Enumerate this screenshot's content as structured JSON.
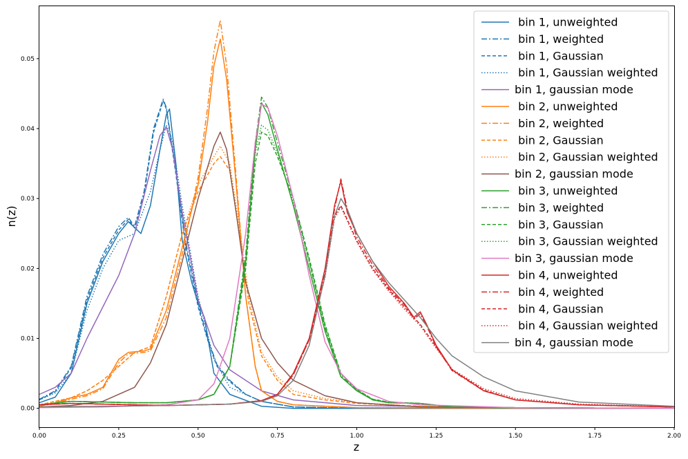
{
  "chart_data": {
    "type": "line",
    "title": "",
    "xlabel": "z",
    "ylabel": "n(z)",
    "xlim": [
      0.0,
      2.0
    ],
    "ylim": [
      -0.0027,
      0.0575
    ],
    "xticks": [
      "0.00",
      "0.25",
      "0.50",
      "0.75",
      "1.00",
      "1.25",
      "1.50",
      "1.75",
      "2.00"
    ],
    "xtick_values": [
      0.0,
      0.25,
      0.5,
      0.75,
      1.0,
      1.25,
      1.5,
      1.75,
      2.0
    ],
    "yticks": [
      "0.00",
      "0.01",
      "0.02",
      "0.03",
      "0.04",
      "0.05"
    ],
    "ytick_values": [
      0.0,
      0.01,
      0.02,
      0.03,
      0.04,
      0.05
    ],
    "grid": false,
    "legend_position": "top-right",
    "colors": {
      "bin1": "#1f77b4",
      "bin2": "#ff7f0e",
      "bin3": "#2ca02c",
      "bin4": "#d62728",
      "mode1": "#9467bd",
      "mode2": "#8c564b",
      "mode3": "#e377c2",
      "mode4": "#7f7f7f"
    },
    "series": [
      {
        "name": " bin 1, unweighted",
        "color": "#1f77b4",
        "dash": "solid",
        "x": [
          0.0,
          0.05,
          0.1,
          0.15,
          0.2,
          0.25,
          0.28,
          0.32,
          0.35,
          0.38,
          0.4,
          0.41,
          0.43,
          0.45,
          0.48,
          0.5,
          0.52,
          0.55,
          0.6,
          0.7,
          0.8,
          1.0,
          2.0
        ],
        "y": [
          0.0008,
          0.0016,
          0.005,
          0.015,
          0.021,
          0.025,
          0.0267,
          0.025,
          0.029,
          0.037,
          0.042,
          0.0428,
          0.035,
          0.024,
          0.018,
          0.015,
          0.013,
          0.005,
          0.002,
          0.0003,
          0.0,
          0.0,
          0.0
        ]
      },
      {
        "name": " bin 1, weighted",
        "color": "#1f77b4",
        "dash": "dashdot",
        "x": [
          0.0,
          0.05,
          0.1,
          0.15,
          0.2,
          0.25,
          0.28,
          0.3,
          0.33,
          0.36,
          0.39,
          0.4,
          0.43,
          0.46,
          0.5,
          0.53,
          0.56,
          0.6,
          0.65,
          0.7,
          0.8,
          1.0,
          2.0
        ],
        "y": [
          0.0013,
          0.0025,
          0.006,
          0.016,
          0.022,
          0.026,
          0.0273,
          0.026,
          0.031,
          0.04,
          0.0442,
          0.043,
          0.034,
          0.024,
          0.015,
          0.01,
          0.0062,
          0.004,
          0.002,
          0.001,
          0.0002,
          0.0,
          0.0
        ]
      },
      {
        "name": " bin 1, Gaussian",
        "color": "#1f77b4",
        "dash": "dashed",
        "x": [
          0.0,
          0.05,
          0.1,
          0.15,
          0.2,
          0.25,
          0.28,
          0.3,
          0.33,
          0.36,
          0.39,
          0.4,
          0.43,
          0.46,
          0.5,
          0.53,
          0.56,
          0.6,
          0.65,
          0.7,
          0.8,
          1.0,
          2.0
        ],
        "y": [
          0.0012,
          0.0024,
          0.0058,
          0.0155,
          0.0215,
          0.0255,
          0.027,
          0.0258,
          0.0305,
          0.0395,
          0.044,
          0.0428,
          0.0335,
          0.0235,
          0.0145,
          0.0098,
          0.006,
          0.0038,
          0.002,
          0.001,
          0.0002,
          0.0,
          0.0
        ]
      },
      {
        "name": " bin 1, Gaussian weighted",
        "color": "#1f77b4",
        "dash": "dotted",
        "x": [
          0.0,
          0.05,
          0.1,
          0.15,
          0.2,
          0.25,
          0.3,
          0.35,
          0.38,
          0.4,
          0.42,
          0.45,
          0.5,
          0.55,
          0.6,
          0.7,
          0.8,
          1.0,
          2.0
        ],
        "y": [
          0.0012,
          0.0022,
          0.005,
          0.014,
          0.02,
          0.024,
          0.025,
          0.031,
          0.037,
          0.0405,
          0.038,
          0.029,
          0.016,
          0.007,
          0.003,
          0.001,
          0.0002,
          0.0,
          0.0
        ]
      },
      {
        "name": "bin 1, gaussian mode",
        "color": "#9467bd",
        "dash": "solid",
        "x": [
          0.0,
          0.05,
          0.1,
          0.15,
          0.2,
          0.25,
          0.3,
          0.35,
          0.38,
          0.4,
          0.42,
          0.45,
          0.5,
          0.55,
          0.6,
          0.7,
          0.8,
          1.0,
          1.5,
          2.0
        ],
        "y": [
          0.002,
          0.003,
          0.005,
          0.01,
          0.0145,
          0.019,
          0.025,
          0.034,
          0.039,
          0.0402,
          0.037,
          0.028,
          0.0155,
          0.009,
          0.0055,
          0.0025,
          0.0012,
          0.0004,
          0.0001,
          0.0
        ]
      },
      {
        "name": " bin 2, unweighted",
        "color": "#ff7f0e",
        "dash": "solid",
        "x": [
          0.0,
          0.05,
          0.1,
          0.15,
          0.2,
          0.25,
          0.28,
          0.33,
          0.35,
          0.4,
          0.45,
          0.5,
          0.53,
          0.55,
          0.57,
          0.59,
          0.62,
          0.65,
          0.68,
          0.7,
          0.75,
          0.8,
          1.0,
          2.0
        ],
        "y": [
          0.0003,
          0.0008,
          0.0015,
          0.002,
          0.003,
          0.007,
          0.008,
          0.0082,
          0.0085,
          0.014,
          0.023,
          0.032,
          0.041,
          0.049,
          0.0528,
          0.047,
          0.032,
          0.016,
          0.006,
          0.0025,
          0.001,
          0.0005,
          0.0001,
          0.0
        ]
      },
      {
        "name": " bin 2, weighted",
        "color": "#ff7f0e",
        "dash": "dashdot",
        "x": [
          0.0,
          0.05,
          0.1,
          0.15,
          0.2,
          0.25,
          0.28,
          0.33,
          0.35,
          0.4,
          0.45,
          0.5,
          0.53,
          0.55,
          0.57,
          0.59,
          0.62,
          0.65,
          0.68,
          0.7,
          0.75,
          0.8,
          1.0,
          2.0
        ],
        "y": [
          0.0003,
          0.0007,
          0.0013,
          0.0018,
          0.0028,
          0.0065,
          0.0078,
          0.008,
          0.0082,
          0.013,
          0.022,
          0.033,
          0.043,
          0.051,
          0.0555,
          0.049,
          0.033,
          0.016,
          0.006,
          0.0025,
          0.001,
          0.0005,
          0.0001,
          0.0
        ]
      },
      {
        "name": " bin 2, Gaussian",
        "color": "#ff7f0e",
        "dash": "dashed",
        "x": [
          0.0,
          0.05,
          0.1,
          0.15,
          0.2,
          0.25,
          0.3,
          0.35,
          0.4,
          0.45,
          0.5,
          0.55,
          0.57,
          0.6,
          0.63,
          0.66,
          0.7,
          0.75,
          0.8,
          0.9,
          1.0,
          1.2,
          1.5,
          2.0
        ],
        "y": [
          0.0005,
          0.001,
          0.0015,
          0.0025,
          0.004,
          0.006,
          0.008,
          0.0088,
          0.016,
          0.025,
          0.031,
          0.035,
          0.036,
          0.034,
          0.025,
          0.015,
          0.0075,
          0.004,
          0.002,
          0.0012,
          0.0007,
          0.0003,
          0.0001,
          0.0
        ]
      },
      {
        "name": " bin 2, Gaussian weighted",
        "color": "#ff7f0e",
        "dash": "dotted",
        "x": [
          0.0,
          0.05,
          0.1,
          0.15,
          0.2,
          0.25,
          0.3,
          0.35,
          0.4,
          0.45,
          0.5,
          0.55,
          0.57,
          0.6,
          0.63,
          0.66,
          0.7,
          0.75,
          0.8,
          0.9,
          1.0,
          1.2,
          1.5,
          2.0
        ],
        "y": [
          0.0005,
          0.001,
          0.0015,
          0.0025,
          0.004,
          0.006,
          0.008,
          0.0088,
          0.016,
          0.025,
          0.032,
          0.036,
          0.0375,
          0.035,
          0.026,
          0.016,
          0.008,
          0.0045,
          0.0025,
          0.0014,
          0.0008,
          0.0003,
          0.0001,
          0.0
        ]
      },
      {
        "name": "bin 2, gaussian mode",
        "color": "#8c564b",
        "dash": "solid",
        "x": [
          0.0,
          0.1,
          0.2,
          0.3,
          0.35,
          0.4,
          0.45,
          0.5,
          0.55,
          0.57,
          0.59,
          0.62,
          0.65,
          0.7,
          0.75,
          0.8,
          0.9,
          1.0,
          1.2,
          1.5,
          2.0
        ],
        "y": [
          0.0002,
          0.0004,
          0.001,
          0.003,
          0.0065,
          0.012,
          0.021,
          0.03,
          0.0375,
          0.0395,
          0.037,
          0.028,
          0.018,
          0.01,
          0.0065,
          0.004,
          0.0018,
          0.0008,
          0.0002,
          0.0001,
          0.0
        ]
      },
      {
        "name": " bin 3, unweighted",
        "color": "#2ca02c",
        "dash": "solid",
        "x": [
          0.0,
          0.1,
          0.2,
          0.3,
          0.4,
          0.5,
          0.55,
          0.6,
          0.65,
          0.68,
          0.7,
          0.72,
          0.75,
          0.8,
          0.85,
          0.9,
          0.95,
          1.0,
          1.05,
          1.1,
          1.2,
          1.3,
          1.5,
          2.0
        ],
        "y": [
          0.0005,
          0.001,
          0.0009,
          0.0008,
          0.0008,
          0.0012,
          0.002,
          0.006,
          0.021,
          0.037,
          0.0437,
          0.042,
          0.037,
          0.029,
          0.02,
          0.011,
          0.0045,
          0.0025,
          0.0012,
          0.0008,
          0.0007,
          0.0002,
          0.0001,
          0.0
        ]
      },
      {
        "name": " bin 3, weighted",
        "color": "#2ca02c",
        "dash": "dashdot",
        "x": [
          0.0,
          0.1,
          0.2,
          0.3,
          0.4,
          0.5,
          0.55,
          0.6,
          0.65,
          0.68,
          0.7,
          0.72,
          0.75,
          0.8,
          0.85,
          0.9,
          0.95,
          1.0,
          1.05,
          1.1,
          1.2,
          1.3,
          1.5,
          2.0
        ],
        "y": [
          0.0005,
          0.001,
          0.0009,
          0.0008,
          0.0008,
          0.0012,
          0.002,
          0.006,
          0.022,
          0.038,
          0.0445,
          0.043,
          0.038,
          0.03,
          0.021,
          0.0115,
          0.0047,
          0.0026,
          0.0012,
          0.0008,
          0.0007,
          0.0002,
          0.0001,
          0.0
        ]
      },
      {
        "name": " bin 3, Gaussian",
        "color": "#2ca02c",
        "dash": "dashed",
        "x": [
          0.0,
          0.1,
          0.2,
          0.3,
          0.4,
          0.5,
          0.55,
          0.6,
          0.65,
          0.68,
          0.7,
          0.72,
          0.75,
          0.8,
          0.85,
          0.9,
          0.95,
          1.0,
          1.05,
          1.1,
          1.2,
          1.3,
          1.5,
          2.0
        ],
        "y": [
          0.0005,
          0.001,
          0.0009,
          0.0008,
          0.0008,
          0.0012,
          0.002,
          0.006,
          0.02,
          0.035,
          0.0395,
          0.039,
          0.036,
          0.03,
          0.0215,
          0.012,
          0.005,
          0.0027,
          0.0013,
          0.0009,
          0.0007,
          0.0002,
          0.0001,
          0.0
        ]
      },
      {
        "name": " bin 3, Gaussian weighted",
        "color": "#2ca02c",
        "dash": "dotted",
        "x": [
          0.0,
          0.1,
          0.2,
          0.3,
          0.4,
          0.5,
          0.55,
          0.6,
          0.65,
          0.68,
          0.7,
          0.72,
          0.75,
          0.8,
          0.85,
          0.9,
          0.95,
          1.0,
          1.05,
          1.1,
          1.2,
          1.3,
          1.5,
          2.0
        ],
        "y": [
          0.0005,
          0.001,
          0.0009,
          0.0008,
          0.0008,
          0.0012,
          0.002,
          0.006,
          0.021,
          0.0365,
          0.0405,
          0.0398,
          0.0365,
          0.0295,
          0.021,
          0.0118,
          0.0049,
          0.0027,
          0.0013,
          0.0009,
          0.0007,
          0.0002,
          0.0001,
          0.0
        ]
      },
      {
        "name": "bin 3, gaussian mode",
        "color": "#e377c2",
        "dash": "solid",
        "x": [
          0.0,
          0.2,
          0.4,
          0.5,
          0.55,
          0.6,
          0.65,
          0.68,
          0.7,
          0.72,
          0.75,
          0.8,
          0.85,
          0.9,
          0.95,
          1.0,
          1.1,
          1.2,
          1.5,
          2.0
        ],
        "y": [
          0.0001,
          0.0002,
          0.0005,
          0.0012,
          0.0035,
          0.01,
          0.025,
          0.038,
          0.0435,
          0.043,
          0.039,
          0.03,
          0.019,
          0.0095,
          0.005,
          0.0028,
          0.001,
          0.0005,
          0.0001,
          0.0
        ]
      },
      {
        "name": " bin 4, unweighted",
        "color": "#d62728",
        "dash": "solid",
        "x": [
          0.0,
          0.1,
          0.2,
          0.4,
          0.6,
          0.7,
          0.75,
          0.8,
          0.85,
          0.9,
          0.93,
          0.95,
          0.97,
          1.0,
          1.05,
          1.1,
          1.15,
          1.18,
          1.2,
          1.22,
          1.25,
          1.3,
          1.4,
          1.5,
          1.7,
          2.0
        ],
        "y": [
          0.0005,
          0.0007,
          0.0006,
          0.0004,
          0.0006,
          0.0011,
          0.002,
          0.005,
          0.01,
          0.02,
          0.029,
          0.0325,
          0.028,
          0.025,
          0.021,
          0.0175,
          0.015,
          0.013,
          0.0138,
          0.012,
          0.009,
          0.0055,
          0.0025,
          0.0012,
          0.0005,
          0.0002
        ]
      },
      {
        "name": " bin 4, weighted",
        "color": "#d62728",
        "dash": "dashdot",
        "x": [
          0.0,
          0.1,
          0.2,
          0.4,
          0.6,
          0.7,
          0.75,
          0.8,
          0.85,
          0.9,
          0.93,
          0.95,
          0.97,
          1.0,
          1.05,
          1.1,
          1.15,
          1.18,
          1.2,
          1.22,
          1.25,
          1.3,
          1.4,
          1.5,
          1.7,
          2.0
        ],
        "y": [
          0.0005,
          0.0007,
          0.0006,
          0.0004,
          0.0006,
          0.0011,
          0.002,
          0.0048,
          0.0098,
          0.0195,
          0.0285,
          0.0328,
          0.0285,
          0.0245,
          0.0205,
          0.0172,
          0.0148,
          0.0128,
          0.0135,
          0.0118,
          0.0088,
          0.0054,
          0.0025,
          0.0012,
          0.0005,
          0.0002
        ]
      },
      {
        "name": " bin 4, Gaussian",
        "color": "#d62728",
        "dash": "dashed",
        "x": [
          0.0,
          0.1,
          0.2,
          0.4,
          0.6,
          0.7,
          0.75,
          0.8,
          0.85,
          0.9,
          0.93,
          0.95,
          0.97,
          1.0,
          1.05,
          1.1,
          1.15,
          1.2,
          1.25,
          1.3,
          1.4,
          1.5,
          1.7,
          2.0
        ],
        "y": [
          0.0005,
          0.0007,
          0.0006,
          0.0004,
          0.0006,
          0.0011,
          0.002,
          0.0048,
          0.0098,
          0.019,
          0.0275,
          0.029,
          0.027,
          0.024,
          0.02,
          0.017,
          0.0145,
          0.012,
          0.0088,
          0.0055,
          0.0026,
          0.0012,
          0.0005,
          0.0002
        ]
      },
      {
        "name": " bin 4, Gaussian weighted",
        "color": "#d62728",
        "dash": "dotted",
        "x": [
          0.0,
          0.1,
          0.2,
          0.4,
          0.6,
          0.7,
          0.75,
          0.8,
          0.85,
          0.9,
          0.93,
          0.95,
          0.97,
          1.0,
          1.05,
          1.1,
          1.15,
          1.2,
          1.25,
          1.3,
          1.4,
          1.5,
          1.7,
          2.0
        ],
        "y": [
          0.0005,
          0.0007,
          0.0006,
          0.0004,
          0.0006,
          0.0011,
          0.002,
          0.0048,
          0.0098,
          0.0188,
          0.0272,
          0.0288,
          0.0268,
          0.0238,
          0.0198,
          0.0168,
          0.0142,
          0.0118,
          0.0086,
          0.0056,
          0.0028,
          0.0014,
          0.0006,
          0.0002
        ]
      },
      {
        "name": "bin 4, gaussian mode",
        "color": "#7f7f7f",
        "dash": "solid",
        "x": [
          0.0,
          0.2,
          0.4,
          0.6,
          0.7,
          0.75,
          0.8,
          0.85,
          0.9,
          0.93,
          0.95,
          0.97,
          1.0,
          1.05,
          1.1,
          1.15,
          1.2,
          1.25,
          1.3,
          1.4,
          1.5,
          1.7,
          2.0
        ],
        "y": [
          0.0002,
          0.0003,
          0.0004,
          0.0006,
          0.001,
          0.0018,
          0.004,
          0.009,
          0.019,
          0.0275,
          0.03,
          0.0285,
          0.025,
          0.021,
          0.018,
          0.0155,
          0.013,
          0.01,
          0.0075,
          0.0045,
          0.0025,
          0.0009,
          0.0003
        ]
      }
    ]
  }
}
